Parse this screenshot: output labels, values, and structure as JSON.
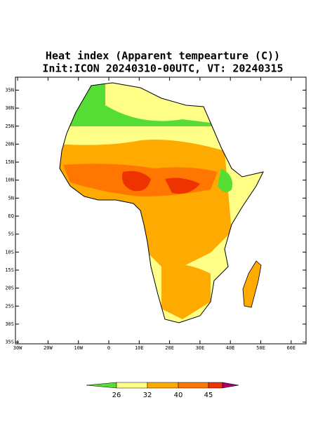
{
  "map": {
    "title": "Heat index (Apparent tempearture (C))",
    "subtitle": "Init:ICON 20240310-00UTC, VT: 20240315",
    "lat_ticks": [
      {
        "value": 35,
        "label": "35N"
      },
      {
        "value": 30,
        "label": "30N"
      },
      {
        "value": 25,
        "label": "25N"
      },
      {
        "value": 20,
        "label": "20N"
      },
      {
        "value": 15,
        "label": "15N"
      },
      {
        "value": 10,
        "label": "10N"
      },
      {
        "value": 5,
        "label": "5N"
      },
      {
        "value": 0,
        "label": "EQ"
      },
      {
        "value": -5,
        "label": "5S"
      },
      {
        "value": -10,
        "label": "10S"
      },
      {
        "value": -15,
        "label": "15S"
      },
      {
        "value": -20,
        "label": "20S"
      },
      {
        "value": -25,
        "label": "25S"
      },
      {
        "value": -30,
        "label": "30S"
      },
      {
        "value": -35,
        "label": "35S"
      }
    ],
    "lon_ticks": [
      {
        "value": -30,
        "label": "30W"
      },
      {
        "value": -20,
        "label": "20W"
      },
      {
        "value": -10,
        "label": "10W"
      },
      0,
      {
        "value": 10,
        "label": "10E"
      },
      {
        "value": 20,
        "label": "20E"
      },
      {
        "value": 30,
        "label": "30E"
      },
      {
        "value": 40,
        "label": "40E"
      },
      {
        "value": 50,
        "label": "50E"
      },
      {
        "value": 60,
        "label": "60E"
      }
    ],
    "colorbar": {
      "ticks": [
        26,
        32,
        40,
        45
      ],
      "colors": [
        "#55dd33",
        "#ffff88",
        "#ffaa00",
        "#ff7700",
        "#ee3300",
        "#aa0066"
      ]
    }
  }
}
